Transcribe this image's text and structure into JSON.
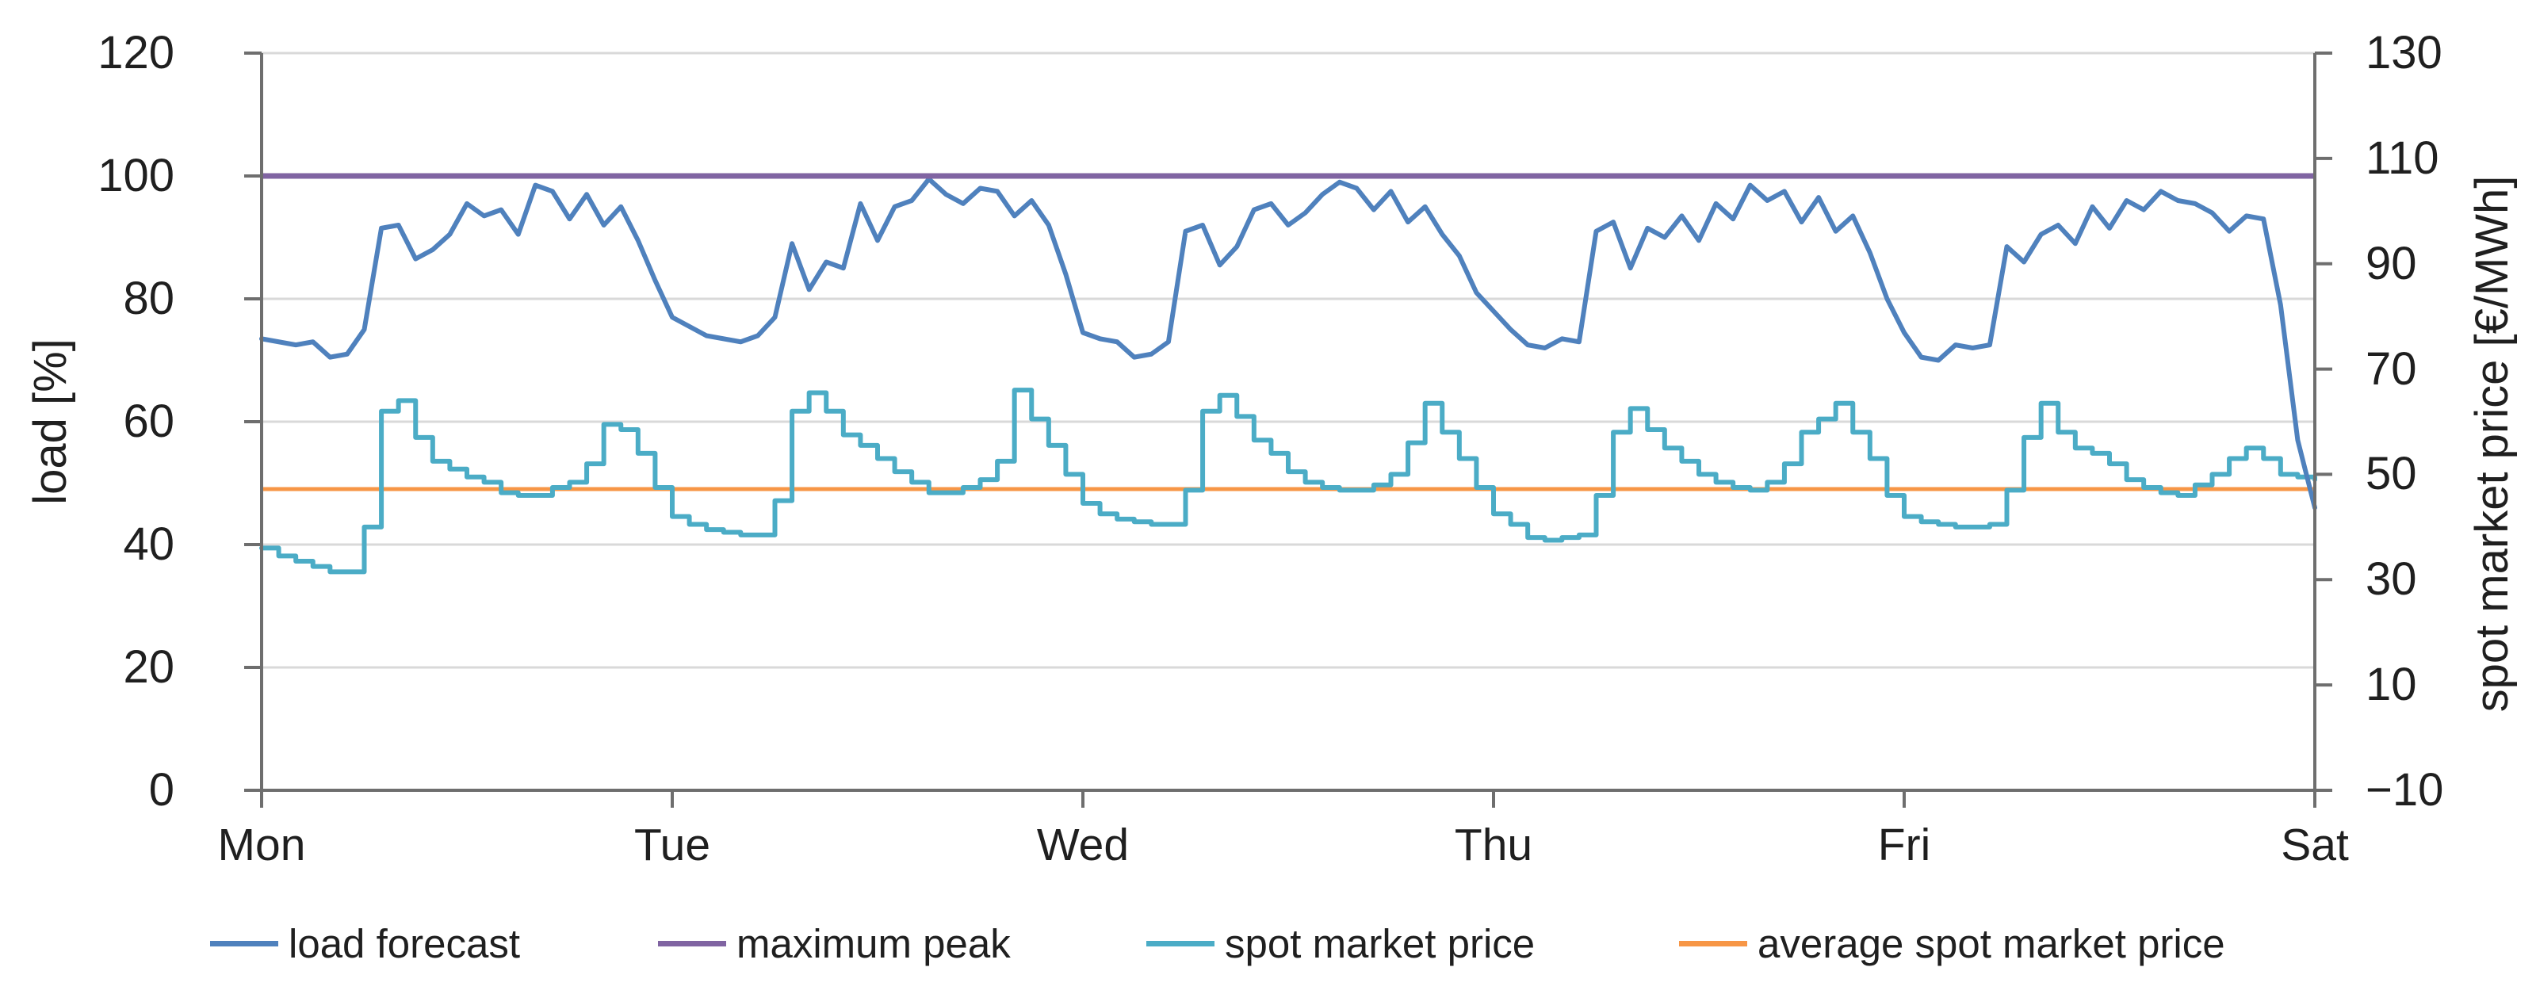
{
  "chart_data": {
    "type": "line",
    "title": "",
    "x_axis": {
      "tick_labels": [
        "Mon",
        "Tue",
        "Wed",
        "Thu",
        "Fri",
        "Sat"
      ],
      "hours_total": 120,
      "tick_every_hours": 24,
      "grid": false
    },
    "left_axis": {
      "title": "load [%]",
      "min": 0,
      "max": 120,
      "tick_step": 20,
      "tick_labels": [
        "120",
        "100",
        "80",
        "60",
        "40",
        "20",
        "0"
      ],
      "grid": true
    },
    "right_axis": {
      "title": "spot market price [€/MWh]",
      "min": -10,
      "max": 130,
      "tick_step": 20,
      "tick_labels": [
        "130",
        "110",
        "90",
        "70",
        "50",
        "30",
        "10",
        "−10"
      ],
      "grid": false
    },
    "grid_color": "#d9d9d9",
    "axis_color": "#6e6e6e",
    "series": [
      {
        "name": "load forecast",
        "axis": "left",
        "style": "line",
        "color": "#4F81BD",
        "width": 6,
        "values": [
          73.5,
          73,
          72.5,
          73,
          70.5,
          71,
          75,
          91.5,
          92,
          86.5,
          88,
          90.5,
          95.5,
          93.5,
          94.5,
          90.5,
          98.5,
          97.5,
          93,
          97,
          92,
          95,
          89.5,
          83,
          77,
          75.5,
          74,
          73.5,
          73,
          74,
          77,
          89,
          81.5,
          86,
          85,
          95.5,
          89.5,
          95,
          96,
          99.5,
          97,
          95.5,
          98,
          97.5,
          93.5,
          96,
          92,
          84,
          74.5,
          73.5,
          73,
          70.5,
          71,
          73,
          91,
          92,
          85.5,
          88.5,
          94.5,
          95.5,
          92,
          94,
          97,
          99,
          98,
          94.5,
          97.5,
          92.5,
          95,
          90.5,
          87,
          81,
          78,
          75,
          72.5,
          72,
          73.5,
          73,
          91,
          92.5,
          85,
          91.5,
          90,
          93.5,
          89.5,
          95.5,
          93,
          98.5,
          96,
          97.5,
          92.5,
          96.5,
          91,
          93.5,
          87.5,
          80,
          74.5,
          70.5,
          70,
          72.5,
          72,
          72.5,
          88.5,
          86,
          90.5,
          92,
          89,
          95,
          91.5,
          96,
          94.5,
          97.5,
          96,
          95.5,
          94,
          91,
          93.5,
          93,
          79,
          57,
          46
        ]
      },
      {
        "name": "maximum peak",
        "axis": "left",
        "style": "hline",
        "color": "#8064A2",
        "width": 7,
        "value": 100
      },
      {
        "name": "spot market price",
        "axis": "right",
        "style": "step",
        "color": "#4BACC6",
        "width": 6,
        "values": [
          36,
          34.5,
          33.5,
          32.5,
          31.5,
          31.5,
          40,
          62,
          64,
          57,
          52.5,
          51,
          49.5,
          48.5,
          46.5,
          46,
          46,
          47.5,
          48.5,
          52,
          59.5,
          58.5,
          54,
          47.5,
          42,
          40.5,
          39.5,
          39,
          38.5,
          38.5,
          45,
          62,
          65.5,
          62,
          57.5,
          55.5,
          53,
          50.5,
          48.5,
          46.5,
          46.5,
          47.5,
          49,
          52.5,
          66,
          60.5,
          55.5,
          50,
          44.5,
          42.5,
          41.5,
          41,
          40.5,
          40.5,
          47,
          62,
          65,
          61,
          56.5,
          54,
          50.5,
          48.5,
          47.5,
          47,
          47,
          48,
          50,
          56,
          63.5,
          58,
          53,
          47.5,
          42.5,
          40.5,
          38,
          37.5,
          38,
          38.5,
          46,
          58,
          62.5,
          58.5,
          55,
          52.5,
          50,
          48.5,
          47.5,
          47,
          48.5,
          52,
          58,
          60.5,
          63.5,
          58,
          53,
          46,
          42,
          41,
          40.5,
          40,
          40,
          40.5,
          47,
          57,
          63.5,
          58,
          55,
          54,
          52,
          49,
          47.5,
          46.5,
          46,
          48,
          50,
          53,
          55,
          53,
          50,
          49.5,
          49
        ]
      },
      {
        "name": "average spot market price",
        "axis": "right",
        "style": "hline",
        "color": "#F79646",
        "width": 5,
        "value": 47.2
      }
    ]
  },
  "legend": {
    "items": [
      {
        "label": "load forecast",
        "color": "#4F81BD"
      },
      {
        "label": "maximum peak",
        "color": "#8064A2"
      },
      {
        "label": "spot market price",
        "color": "#4BACC6"
      },
      {
        "label": "average spot market price",
        "color": "#F79646"
      }
    ]
  }
}
